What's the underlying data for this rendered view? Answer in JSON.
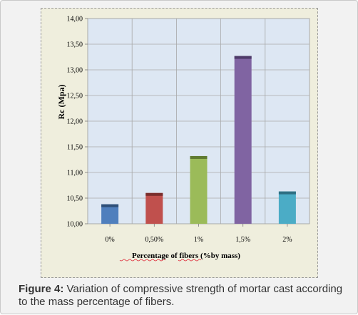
{
  "chart_data": {
    "type": "bar",
    "categories": [
      "0%",
      "0,50%",
      "1%",
      "1,5%",
      "2%"
    ],
    "values": [
      10.38,
      10.6,
      11.32,
      13.27,
      10.63
    ],
    "ylabel": "Rc (Mpa)",
    "xlabel": "Percentage of fibers (%by mass)",
    "ylim": [
      10,
      14
    ],
    "yticks": [
      "10,00",
      "10,50",
      "11,00",
      "11,50",
      "12,00",
      "12,50",
      "13,00",
      "13,50",
      "14,00"
    ],
    "grid": true,
    "legend": "none",
    "colors": [
      "#4f7fbd",
      "#c0504d",
      "#9bbb59",
      "#8064a2",
      "#4bacc6"
    ],
    "top_colors": [
      "#2e4f78",
      "#7a2e2c",
      "#5f7a30",
      "#4d3a68",
      "#2e6f83"
    ],
    "plot_background": "#dde7f3"
  },
  "caption": {
    "label": "Figure 4:",
    "text": " Variation of compressive strength of mortar cast according to the mass percentage of fibers."
  }
}
